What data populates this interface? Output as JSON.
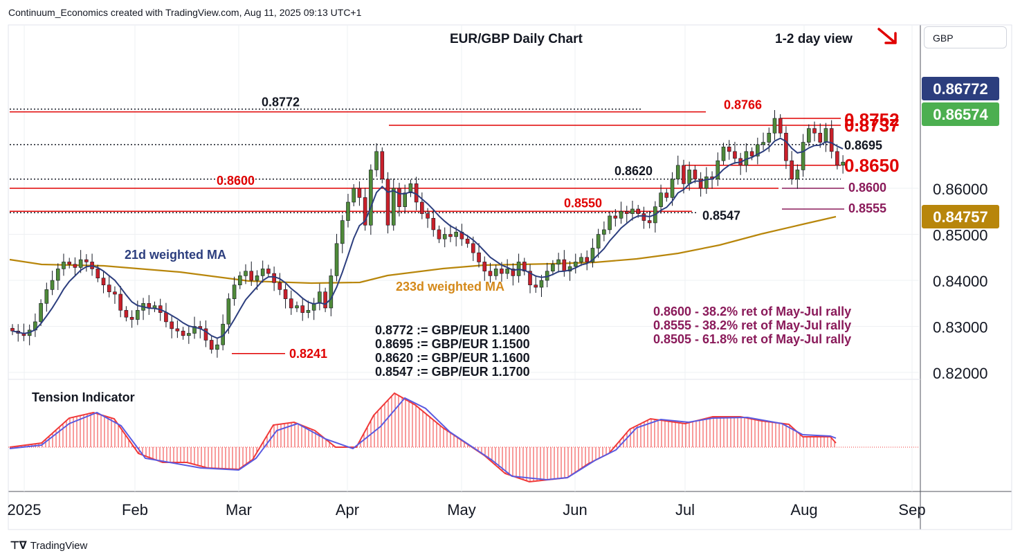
{
  "header": {
    "attribution": "Continuum_Economics created with TradingView.com, Aug 11, 2025 09:13 UTC+1"
  },
  "footer": {
    "brand": "TradingView"
  },
  "currency_button": "GBP",
  "colors": {
    "up": "#4f8a39",
    "down": "#c9202a",
    "ma21": "#2c3e7e",
    "ma233": "#b8860b",
    "red_line": "#e00000",
    "fib": "#8a1a5a",
    "grid": "#eef0f3",
    "tension_red": "#f03838",
    "tension_blue": "#5a5ae0"
  },
  "chart_data": {
    "type": "candlestick",
    "title": "EUR/GBP Daily Chart",
    "subtitle": "1-2 day view",
    "x_ticks": [
      "2025",
      "Feb",
      "Mar",
      "Apr",
      "May",
      "Jun",
      "Jul",
      "Aug",
      "Sep"
    ],
    "y_ticks": [
      "0.86000",
      "0.85000",
      "0.84000",
      "0.83000",
      "0.82000"
    ],
    "ylim": [
      0.8185,
      0.8955
    ],
    "price_tags": [
      {
        "value": "0.86772",
        "color": "#2c3e7e"
      },
      {
        "value": "0.86574",
        "color": "#4caf50"
      },
      {
        "value": "0.84757",
        "color": "#b8860b"
      }
    ],
    "levels": [
      {
        "value": 0.8772,
        "label": "0.8772",
        "style": "dotted"
      },
      {
        "value": 0.8766,
        "label": "0.8766",
        "style": "red"
      },
      {
        "value": 0.8752,
        "label": "0.8752",
        "style": "red"
      },
      {
        "value": 0.8737,
        "label": "0.8737",
        "style": "red"
      },
      {
        "value": 0.8695,
        "label": "0.8695",
        "style": "dotted"
      },
      {
        "value": 0.865,
        "label": "0.8650",
        "style": "red"
      },
      {
        "value": 0.862,
        "label": "0.8620",
        "style": "dotted"
      },
      {
        "value": 0.86,
        "label": "0.8600",
        "style": "red"
      },
      {
        "value": 0.86,
        "label": "0.8600",
        "style": "fib"
      },
      {
        "value": 0.8555,
        "label": "0.8555",
        "style": "fib"
      },
      {
        "value": 0.855,
        "label": "0.8550",
        "style": "red"
      },
      {
        "value": 0.8547,
        "label": "0.8547",
        "style": "dotted"
      },
      {
        "value": 0.8241,
        "label": "0.8241",
        "style": "red"
      }
    ],
    "series": [
      {
        "name": "21d weighted MA"
      },
      {
        "name": "233d weighted MA"
      }
    ],
    "annotations": {
      "conversions": [
        "0.8772 := GBP/EUR 1.1400",
        "0.8695 := GBP/EUR 1.1500",
        "0.8620 := GBP/EUR 1.1600",
        "0.8547 := GBP/EUR 1.1700"
      ],
      "fib_notes": [
        "0.8600 - 38.2% ret of May-Jul rally",
        "0.8555 - 38.2% ret of May-Jul rally",
        "0.8505 - 61.8% ret of May-Jul rally"
      ]
    },
    "closes": [
      0.829,
      0.8285,
      0.828,
      0.8292,
      0.831,
      0.835,
      0.838,
      0.84,
      0.8425,
      0.844,
      0.8435,
      0.8428,
      0.8445,
      0.844,
      0.8425,
      0.8405,
      0.839,
      0.8375,
      0.837,
      0.8335,
      0.832,
      0.8315,
      0.8335,
      0.835,
      0.834,
      0.8345,
      0.833,
      0.831,
      0.8295,
      0.829,
      0.828,
      0.8285,
      0.83,
      0.8295,
      0.827,
      0.825,
      0.826,
      0.8305,
      0.836,
      0.839,
      0.841,
      0.842,
      0.84,
      0.841,
      0.8425,
      0.8415,
      0.8395,
      0.838,
      0.836,
      0.834,
      0.8345,
      0.833,
      0.8335,
      0.835,
      0.8375,
      0.834,
      0.841,
      0.848,
      0.853,
      0.857,
      0.86,
      0.858,
      0.852,
      0.864,
      0.868,
      0.862,
      0.852,
      0.86,
      0.856,
      0.859,
      0.861,
      0.857,
      0.8545,
      0.8535,
      0.851,
      0.849,
      0.85,
      0.8495,
      0.8505,
      0.849,
      0.848,
      0.846,
      0.844,
      0.842,
      0.841,
      0.8425,
      0.8415,
      0.8425,
      0.841,
      0.844,
      0.842,
      0.839,
      0.8385,
      0.84,
      0.842,
      0.8435,
      0.8445,
      0.842,
      0.843,
      0.844,
      0.845,
      0.844,
      0.847,
      0.85,
      0.851,
      0.854,
      0.8535,
      0.855,
      0.8545,
      0.8555,
      0.8545,
      0.853,
      0.8525,
      0.856,
      0.859,
      0.858,
      0.862,
      0.865,
      0.861,
      0.864,
      0.862,
      0.86,
      0.8625,
      0.862,
      0.866,
      0.869,
      0.868,
      0.8665,
      0.865,
      0.868,
      0.867,
      0.8695,
      0.87,
      0.872,
      0.8752,
      0.872,
      0.866,
      0.862,
      0.864,
      0.87,
      0.873,
      0.872,
      0.87,
      0.873,
      0.868,
      0.865,
      0.8657
    ]
  }
}
